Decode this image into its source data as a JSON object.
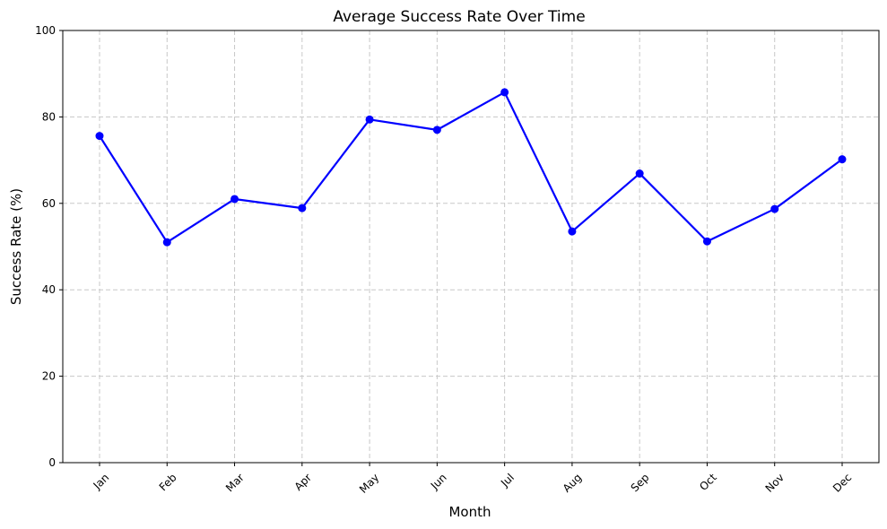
{
  "chart_data": {
    "type": "line",
    "title": "Average Success Rate Over Time",
    "xlabel": "Month",
    "ylabel": "Success Rate (%)",
    "categories": [
      "Jan",
      "Feb",
      "Mar",
      "Apr",
      "May",
      "Jun",
      "Jul",
      "Aug",
      "Sep",
      "Oct",
      "Nov",
      "Dec"
    ],
    "series": [
      {
        "values": [
          75.6,
          51.0,
          61.0,
          58.9,
          79.4,
          77.0,
          85.7,
          53.5,
          66.9,
          51.2,
          58.7,
          70.2
        ],
        "color": "#0000ff",
        "marker": "circle"
      }
    ],
    "ylim": [
      0,
      100
    ],
    "yticks": [
      0,
      20,
      40,
      60,
      80,
      100
    ],
    "grid": true,
    "xtick_rotation": -45
  }
}
